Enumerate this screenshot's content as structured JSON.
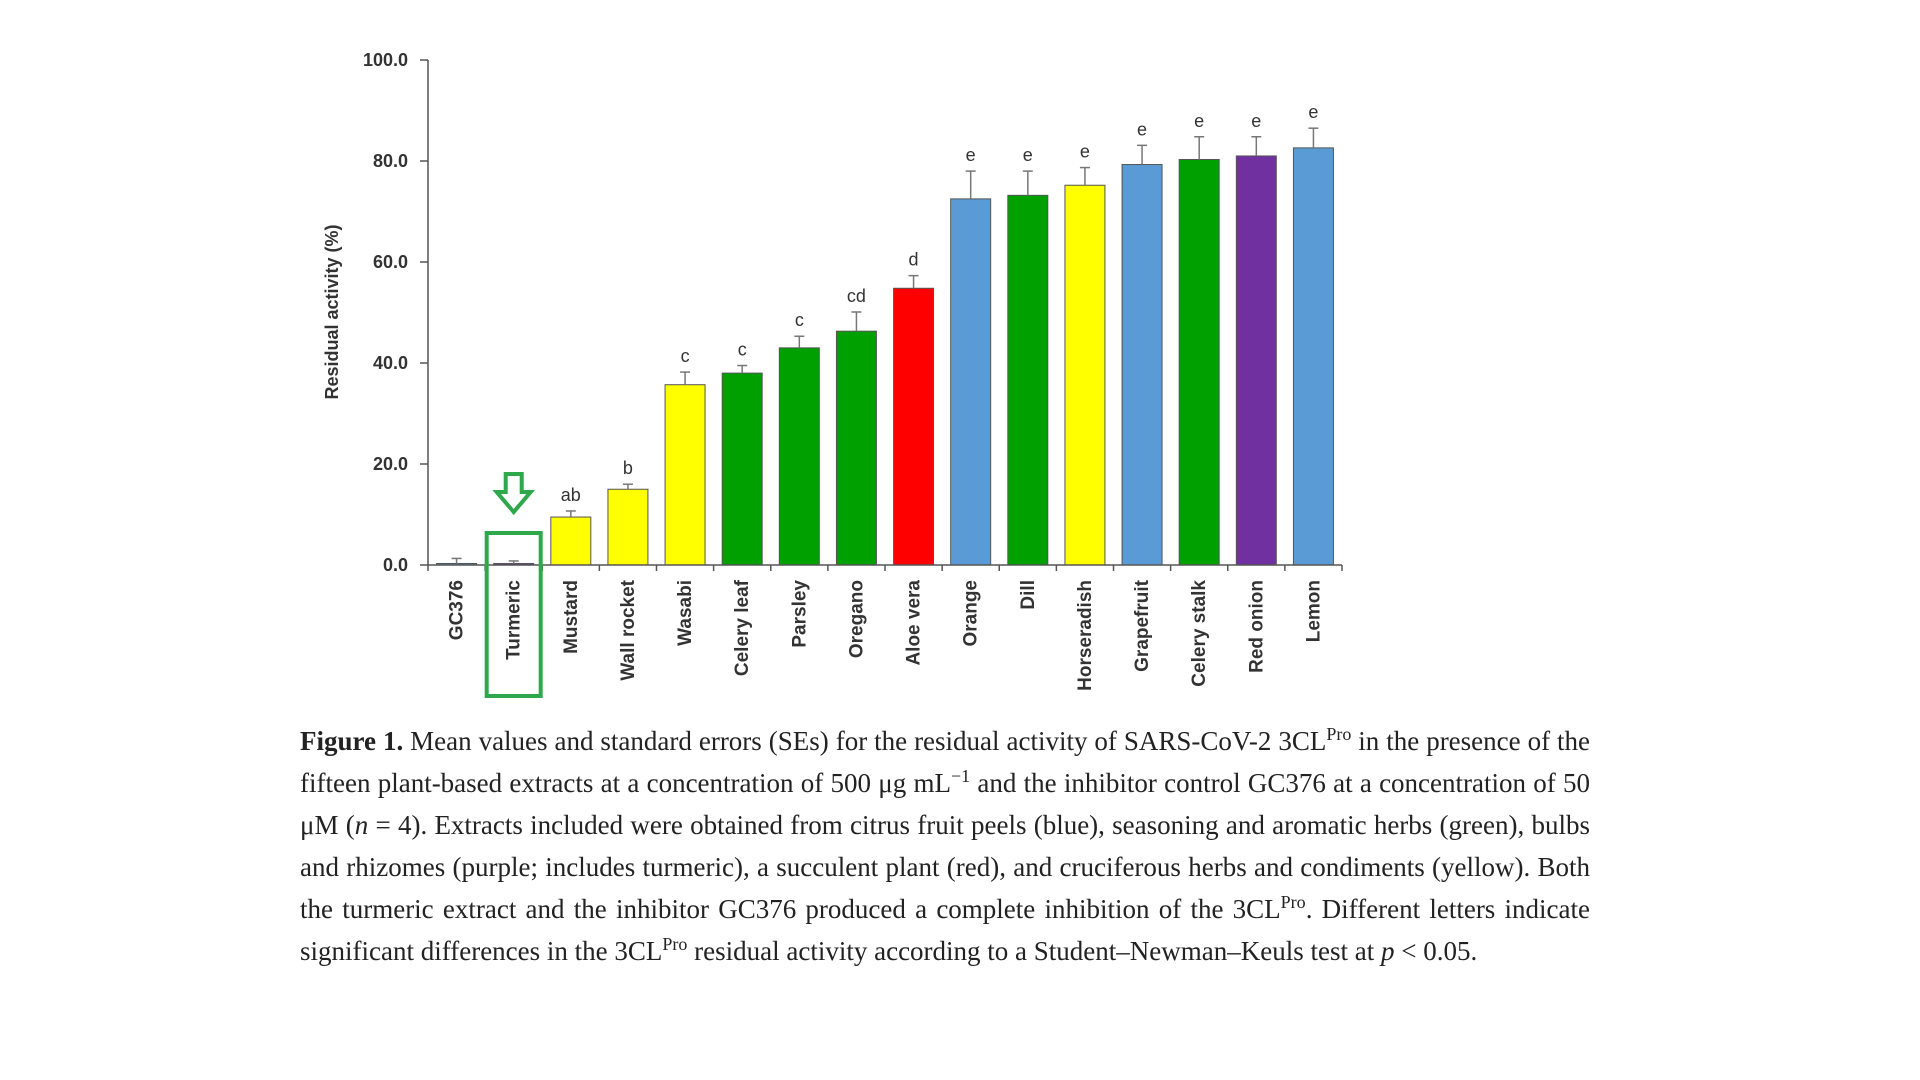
{
  "chart_data": {
    "type": "bar",
    "ylabel": "Residual activity (%)",
    "ylim": [
      0,
      100
    ],
    "yticks": [
      "0.0",
      "20.0",
      "40.0",
      "60.0",
      "80.0",
      "100.0"
    ],
    "categories": [
      "GC376",
      "Turmeric",
      "Mustard",
      "Wall rocket",
      "Wasabi",
      "Celery leaf",
      "Parsley",
      "Oregano",
      "Aloe vera",
      "Orange",
      "Dill",
      "Horseradish",
      "Grapefruit",
      "Celery stalk",
      "Red onion",
      "Lemon"
    ],
    "values": [
      0.3,
      0.3,
      9.5,
      15.0,
      35.7,
      38.0,
      43.0,
      46.3,
      54.8,
      72.5,
      73.2,
      75.2,
      79.3,
      80.3,
      81.0,
      82.6
    ],
    "errors": [
      1.0,
      0.5,
      1.2,
      1.0,
      2.5,
      1.5,
      2.3,
      3.8,
      2.5,
      5.5,
      4.8,
      3.5,
      3.8,
      4.5,
      3.8,
      3.9
    ],
    "letters": [
      "",
      "",
      "ab",
      "b",
      "c",
      "c",
      "c",
      "cd",
      "d",
      "e",
      "e",
      "e",
      "e",
      "e",
      "e",
      "e"
    ],
    "colors": [
      "#5b9bd5",
      "#7030a0",
      "#ffff00",
      "#ffff00",
      "#ffff00",
      "#00a000",
      "#00a000",
      "#00a000",
      "#ff0000",
      "#5b9bd5",
      "#00a000",
      "#ffff00",
      "#5b9bd5",
      "#00a000",
      "#7030a0",
      "#5b9bd5"
    ],
    "highlight": {
      "category": "Turmeric",
      "color": "#2ea84a"
    }
  },
  "caption": {
    "label": "Figure 1.",
    "part1": " Mean values and standard errors (SEs) for the residual activity of SARS-CoV-2 3CL",
    "sup1": "Pro",
    "part2": " in the presence of the fifteen plant-based extracts at a concentration of 500 μg mL",
    "sup2": "−1",
    "part3": " and the inhibitor control GC376 at a concentration of 50 μM (",
    "n_var": "n",
    "part4": " = 4). Extracts included were obtained from citrus fruit peels (blue), seasoning and aromatic herbs (green), bulbs and rhizomes (purple; includes turmeric), a succulent plant (red), and cruciferous herbs and condiments (yellow). Both the turmeric extract and the inhibitor GC376 produced a complete inhibition of the 3CL",
    "sup3": "Pro",
    "part5": ". Different letters indicate significant differences in the 3CL",
    "sup4": "Pro",
    "part6": " residual activity according to a Student–Newman–Keuls test at ",
    "p_var": "p",
    "part7": " < 0.05."
  }
}
